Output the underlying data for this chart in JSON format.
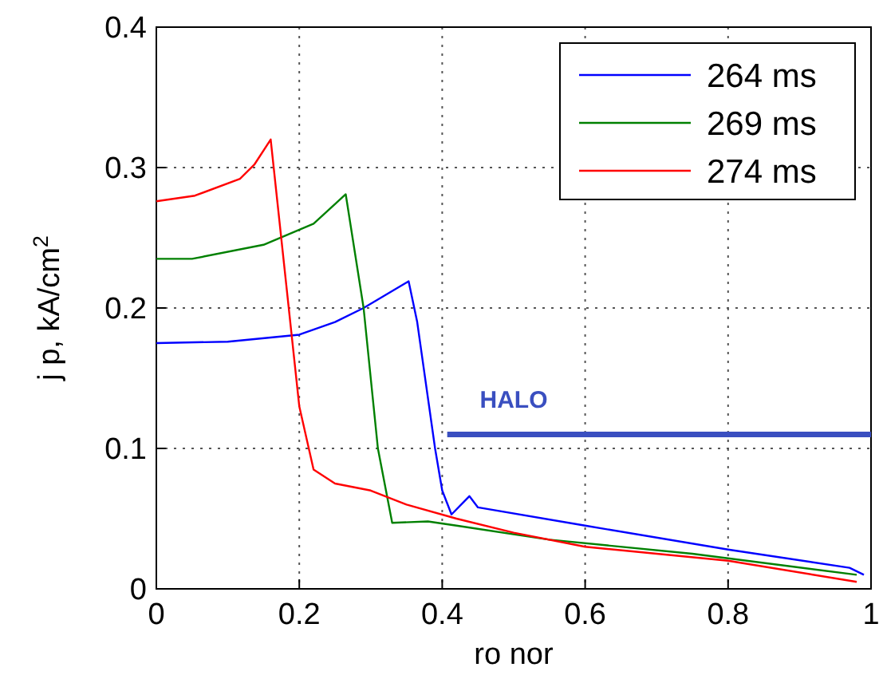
{
  "chart_data": {
    "type": "line",
    "xlabel": "ro nor",
    "ylabel": "j p, kA/cm$^{2}$",
    "xlim": [
      0,
      1
    ],
    "ylim": [
      0,
      0.4
    ],
    "xticks": [
      0,
      0.2,
      0.4,
      0.6,
      0.8,
      1
    ],
    "yticks": [
      0,
      0.1,
      0.2,
      0.3,
      0.4
    ],
    "grid": true,
    "legend": "top right",
    "line_style": "solid",
    "marker": "none",
    "series": [
      {
        "name": "264 ms",
        "color": "#0000ff",
        "x": [
          0,
          0.1,
          0.2,
          0.25,
          0.29,
          0.353,
          0.365,
          0.39,
          0.4,
          0.413,
          0.438,
          0.45,
          0.6,
          0.8,
          0.97,
          0.99
        ],
        "values": [
          0.175,
          0.176,
          0.181,
          0.19,
          0.2,
          0.219,
          0.19,
          0.1,
          0.07,
          0.053,
          0.066,
          0.058,
          0.045,
          0.028,
          0.015,
          0.01
        ]
      },
      {
        "name": "269 ms",
        "color": "#008000",
        "x": [
          0,
          0.05,
          0.15,
          0.22,
          0.265,
          0.29,
          0.31,
          0.33,
          0.38,
          0.42,
          0.55,
          0.75,
          0.98
        ],
        "values": [
          0.235,
          0.235,
          0.245,
          0.26,
          0.281,
          0.2,
          0.1,
          0.047,
          0.048,
          0.045,
          0.035,
          0.025,
          0.01
        ]
      },
      {
        "name": "274 ms",
        "color": "#ff0000",
        "x": [
          0,
          0.054,
          0.117,
          0.137,
          0.16,
          0.2,
          0.22,
          0.25,
          0.3,
          0.35,
          0.42,
          0.5,
          0.6,
          0.8,
          0.98
        ],
        "values": [
          0.276,
          0.28,
          0.292,
          0.302,
          0.32,
          0.13,
          0.085,
          0.075,
          0.07,
          0.06,
          0.05,
          0.04,
          0.03,
          0.02,
          0.005
        ]
      },
      {
        "color": "#3a4fc0",
        "x": [
          0.407,
          1
        ],
        "values": [
          0.11,
          0.11
        ]
      }
    ],
    "annotations": [
      {
        "text": "HALO",
        "x": 0.5,
        "y": 0.11
      }
    ]
  }
}
